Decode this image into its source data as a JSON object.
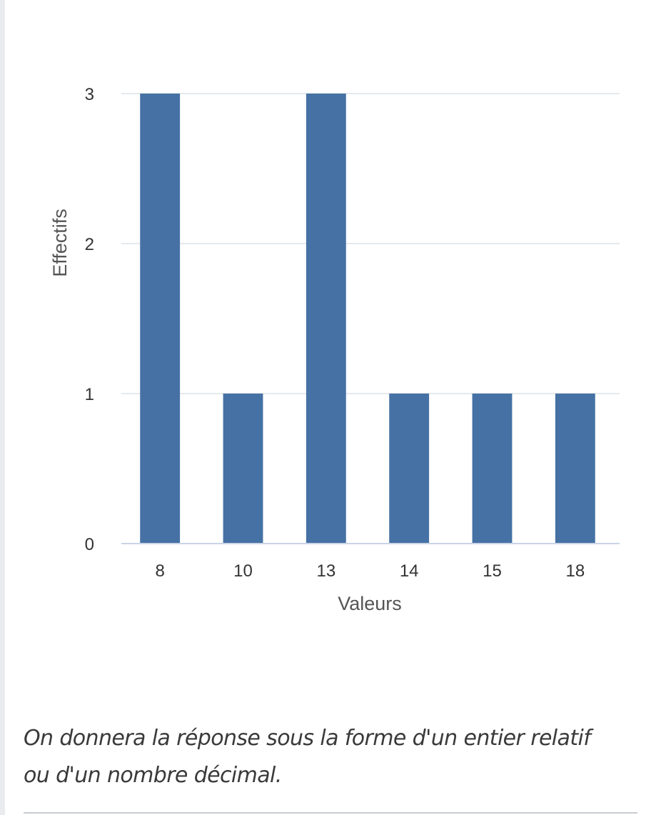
{
  "chart_data": {
    "type": "bar",
    "categories": [
      "8",
      "10",
      "13",
      "14",
      "15",
      "18"
    ],
    "values": [
      3,
      1,
      3,
      1,
      1,
      1
    ],
    "title": "",
    "xlabel": "Valeurs",
    "ylabel": "Effectifs",
    "ylim": [
      0,
      3
    ],
    "yticks": [
      "0",
      "1",
      "2",
      "3"
    ],
    "grid": true,
    "legend": "none",
    "bar_color": "#4571a4",
    "grid_color": "#e6e8ec",
    "baseline_color": "#c9d4e6"
  },
  "instructions": {
    "line1": "On donnera la réponse sous la forme d'un entier relatif",
    "line2": "ou d'un nombre décimal."
  }
}
